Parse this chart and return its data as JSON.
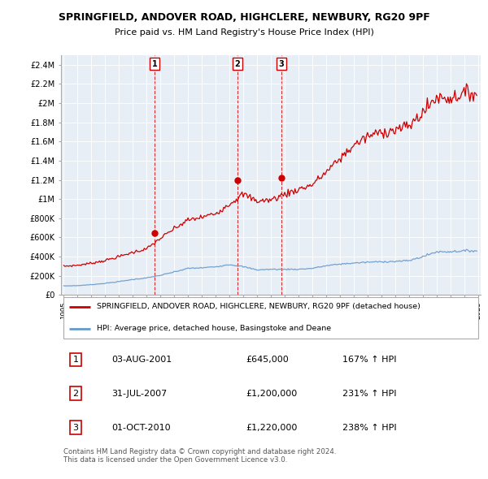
{
  "title": "SPRINGFIELD, ANDOVER ROAD, HIGHCLERE, NEWBURY, RG20 9PF",
  "subtitle": "Price paid vs. HM Land Registry's House Price Index (HPI)",
  "house_color": "#cc0000",
  "hpi_color": "#6699cc",
  "chart_bg": "#e8eef5",
  "ylim": [
    0,
    2500000
  ],
  "yticks": [
    0,
    200000,
    400000,
    600000,
    800000,
    1000000,
    1200000,
    1400000,
    1600000,
    1800000,
    2000000,
    2200000,
    2400000
  ],
  "ytick_labels": [
    "£0",
    "£200K",
    "£400K",
    "£600K",
    "£800K",
    "£1M",
    "£1.2M",
    "£1.4M",
    "£1.6M",
    "£1.8M",
    "£2M",
    "£2.2M",
    "£2.4M"
  ],
  "sales": [
    {
      "date": 2001.583,
      "price": 645000,
      "label": "1"
    },
    {
      "date": 2007.583,
      "price": 1200000,
      "label": "2"
    },
    {
      "date": 2010.75,
      "price": 1220000,
      "label": "3"
    }
  ],
  "sale_dates": [
    "03-AUG-2001",
    "31-JUL-2007",
    "01-OCT-2010"
  ],
  "sale_prices": [
    "£645,000",
    "£1,200,000",
    "£1,220,000"
  ],
  "sale_hpi": [
    "167% ↑ HPI",
    "231% ↑ HPI",
    "238% ↑ HPI"
  ],
  "legend_house": "SPRINGFIELD, ANDOVER ROAD, HIGHCLERE, NEWBURY, RG20 9PF (detached house)",
  "legend_hpi": "HPI: Average price, detached house, Basingstoke and Deane",
  "footer": "Contains HM Land Registry data © Crown copyright and database right 2024.\nThis data is licensed under the Open Government Licence v3.0.",
  "xlim_left": 1994.8,
  "xlim_right": 2025.2
}
